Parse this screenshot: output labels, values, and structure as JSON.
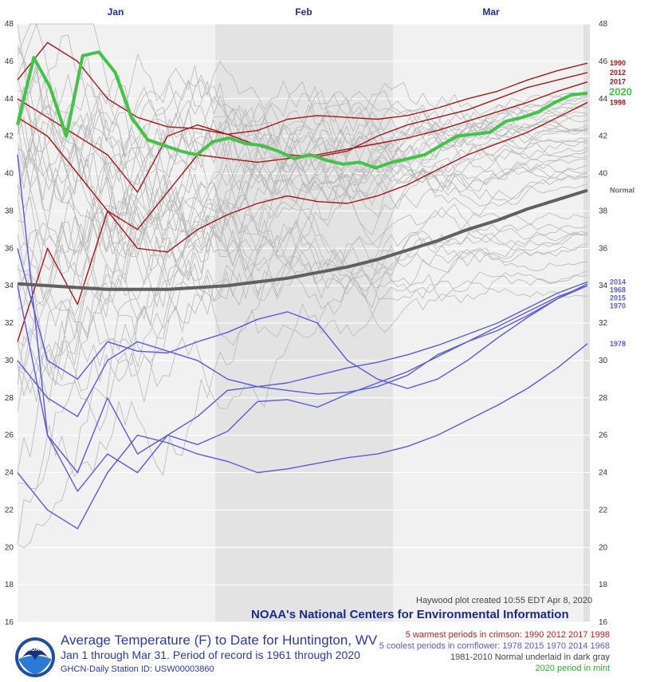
{
  "footer": {
    "title": "Average Temperature (F) to Date for Huntington, WV",
    "subtitle": "Jan 1 through Mar 31. Period of record is 1961 through 2020",
    "station": "GHCN-Daily Station ID: USW00003860",
    "legend_warm": "5 warmest periods in crimson: 1990 2012 2017 1998",
    "legend_cool": "5 coolest periods in cornflower: 1978 2015 1970 2014 1968",
    "legend_normal": "1981-2010 Normal underlaid in dark gray",
    "legend_current": "2020 period in mint",
    "credit": "Haywood plot created 10:55 EDT Apr 8, 2020",
    "banner": "NOAA's National Centers for Environmental Information",
    "logo_text": "NOAA"
  },
  "colors": {
    "warm": "#a01a1a",
    "cool": "#5b5bd6",
    "normal": "#606060",
    "current": "#44c24a",
    "other_years": "#b8b8b8",
    "month_label": "#1e2f8a"
  },
  "chart_data": {
    "type": "line",
    "months": [
      "Jan",
      "Feb",
      "Mar"
    ],
    "days": 91,
    "ylim": [
      16,
      48
    ],
    "yticks": [
      16,
      18,
      20,
      22,
      24,
      26,
      28,
      30,
      32,
      34,
      36,
      38,
      40,
      42,
      44,
      46,
      48
    ],
    "series": [
      {
        "name": "2020",
        "group": "current",
        "values": [
          42.6,
          46.2,
          44.6,
          42.0,
          46.3,
          46.5,
          45.4,
          43.0,
          41.8,
          41.5,
          41.2,
          41.0,
          41.7,
          41.9,
          41.6,
          41.5,
          41.2,
          40.8,
          41.0,
          40.7,
          40.5,
          40.6,
          40.3,
          40.6,
          40.8,
          41.0,
          41.5,
          42.0,
          42.1,
          42.2,
          42.8,
          43.0,
          43.3,
          43.8,
          44.2,
          44.3
        ]
      },
      {
        "name": "Normal",
        "group": "normal",
        "values": [
          34.1,
          34.0,
          33.9,
          33.8,
          33.8,
          33.8,
          33.9,
          34.0,
          34.2,
          34.4,
          34.7,
          35.0,
          35.4,
          35.9,
          36.4,
          37.0,
          37.5,
          38.1,
          38.6,
          39.1
        ]
      },
      {
        "name": "1990",
        "group": "warm",
        "values": [
          45,
          47,
          46,
          44,
          43,
          42.5,
          42.4,
          42.1,
          42.3,
          42.9,
          43.1,
          43.0,
          42.9,
          43.1,
          43.5,
          44.0,
          44.4,
          45.0,
          45.5,
          45.9
        ]
      },
      {
        "name": "2012",
        "group": "warm",
        "values": [
          44,
          43,
          42,
          41,
          39,
          42,
          42.6,
          42.1,
          41.5,
          41.0,
          40.9,
          41.2,
          42.0,
          42.6,
          43.0,
          43.4,
          44.0,
          44.6,
          45.0,
          45.4
        ]
      },
      {
        "name": "2017",
        "group": "warm",
        "values": [
          43,
          42,
          40,
          38,
          37,
          39,
          41,
          40.8,
          40.6,
          40.8,
          41.0,
          41.3,
          41.6,
          41.9,
          42.3,
          42.8,
          43.3,
          43.8,
          44.4,
          44.9
        ]
      },
      {
        "name": "1998",
        "group": "warm",
        "values": [
          31,
          36,
          33,
          38,
          36,
          35.8,
          37,
          37.8,
          38.4,
          38.8,
          38.5,
          38.4,
          38.8,
          39.4,
          40.2,
          41.0,
          41.6,
          42.2,
          43.0,
          43.8
        ]
      },
      {
        "name": "1968",
        "group": "cool",
        "values": [
          34,
          26,
          24,
          28,
          25,
          26,
          27,
          28.4,
          28.6,
          28.4,
          28.2,
          28.3,
          28.6,
          29.2,
          30.3,
          31.0,
          31.6,
          32.4,
          33.3,
          34.1
        ]
      },
      {
        "name": "2014",
        "group": "cool",
        "values": [
          30,
          28,
          27,
          30,
          31,
          30.5,
          30.0,
          29.0,
          28.6,
          28.8,
          29.2,
          29.6,
          29.9,
          30.3,
          30.8,
          31.4,
          32.0,
          32.8,
          33.6,
          34.2
        ]
      },
      {
        "name": "2015",
        "group": "cool",
        "values": [
          36,
          30,
          29,
          31,
          30.5,
          30.4,
          31.0,
          31.5,
          32.2,
          32.6,
          32.0,
          30.0,
          29.0,
          28.5,
          29.0,
          30.0,
          31.2,
          32.3,
          33.3,
          34.0
        ]
      },
      {
        "name": "1970",
        "group": "cool",
        "values": [
          41,
          26,
          23,
          25,
          24,
          26,
          25.5,
          26.2,
          27.8,
          27.9,
          27.5,
          28.2,
          28.8,
          29.4,
          30.2,
          31.0,
          31.8,
          32.6,
          33.4,
          34.0
        ]
      },
      {
        "name": "1978",
        "group": "cool",
        "values": [
          24,
          22,
          21,
          24,
          26,
          25.6,
          25.0,
          24.6,
          24.0,
          24.2,
          24.5,
          24.8,
          25.0,
          25.4,
          26.0,
          26.8,
          27.6,
          28.5,
          29.6,
          30.9
        ]
      }
    ],
    "end_labels": [
      "1990",
      "2012",
      "2017",
      "2020",
      "1998",
      "Normal",
      "1968",
      "2014",
      "2015",
      "1970",
      "1978"
    ]
  }
}
